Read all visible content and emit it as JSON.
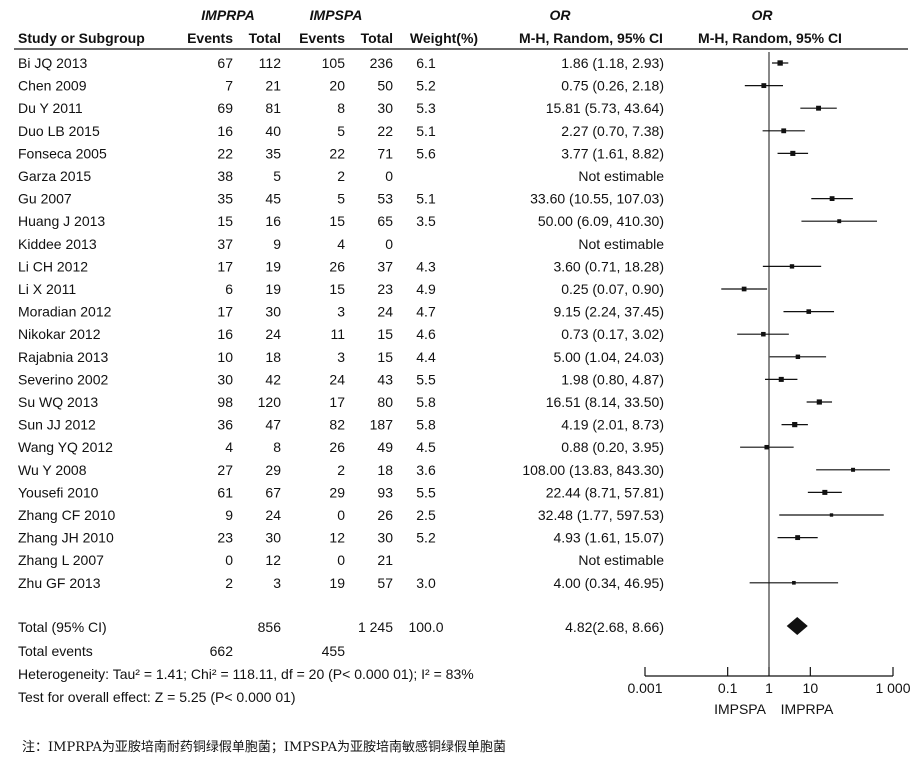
{
  "headers": {
    "group1": "IMPRPA",
    "group2": "IMPSPA",
    "or_header": "OR",
    "forest_header": "OR",
    "study": "Study or Subgroup",
    "events1": "Events",
    "total1": "Total",
    "events2": "Events",
    "total2": "Total",
    "weight": "Weight(%)",
    "method": "M-H, Random, 95% CI",
    "forest_method": "M-H, Random, 95% CI"
  },
  "studies": [
    {
      "name": "Bi JQ 2013",
      "e1": "67",
      "t1": "112",
      "e2": "105",
      "t2": "236",
      "weight": "6.1",
      "ci_text": "1.86 (1.18, 2.93)",
      "or": 1.86,
      "lo": 1.18,
      "hi": 2.93,
      "w": 6.1
    },
    {
      "name": "Chen 2009",
      "e1": "7",
      "t1": "21",
      "e2": "20",
      "t2": "50",
      "weight": "5.2",
      "ci_text": "0.75 (0.26, 2.18)",
      "or": 0.75,
      "lo": 0.26,
      "hi": 2.18,
      "w": 5.2
    },
    {
      "name": "Du Y 2011",
      "e1": "69",
      "t1": "81",
      "e2": "8",
      "t2": "30",
      "weight": "5.3",
      "ci_text": "15.81 (5.73, 43.64)",
      "or": 15.81,
      "lo": 5.73,
      "hi": 43.64,
      "w": 5.3
    },
    {
      "name": "Duo LB  2015",
      "e1": "16",
      "t1": "40",
      "e2": "5",
      "t2": "22",
      "weight": "5.1",
      "ci_text": "2.27 (0.70, 7.38)",
      "or": 2.27,
      "lo": 0.7,
      "hi": 7.38,
      "w": 5.1
    },
    {
      "name": "Fonseca 2005",
      "e1": "22",
      "t1": "35",
      "e2": "22",
      "t2": "71",
      "weight": "5.6",
      "ci_text": "3.77 (1.61, 8.82)",
      "or": 3.77,
      "lo": 1.61,
      "hi": 8.82,
      "w": 5.6
    },
    {
      "name": "Garza 2015",
      "e1": "38",
      "t1": "5",
      "e2": "2",
      "t2": "0",
      "weight": "",
      "ci_text": "Not estimable",
      "or": null,
      "lo": null,
      "hi": null,
      "w": null
    },
    {
      "name": "Gu 2007",
      "e1": "35",
      "t1": "45",
      "e2": "5",
      "t2": "53",
      "weight": "5.1",
      "ci_text": "33.60 (10.55, 107.03)",
      "or": 33.6,
      "lo": 10.55,
      "hi": 107.03,
      "w": 5.1
    },
    {
      "name": "Huang J 2013",
      "e1": "15",
      "t1": "16",
      "e2": "15",
      "t2": "65",
      "weight": "3.5",
      "ci_text": "50.00 (6.09, 410.30)",
      "or": 50.0,
      "lo": 6.09,
      "hi": 410.3,
      "w": 3.5
    },
    {
      "name": "Kiddee 2013",
      "e1": "37",
      "t1": "9",
      "e2": "4",
      "t2": "0",
      "weight": "",
      "ci_text": "Not estimable",
      "or": null,
      "lo": null,
      "hi": null,
      "w": null
    },
    {
      "name": "Li CH 2012",
      "e1": "17",
      "t1": "19",
      "e2": "26",
      "t2": "37",
      "weight": "4.3",
      "ci_text": "3.60 (0.71, 18.28)",
      "or": 3.6,
      "lo": 0.71,
      "hi": 18.28,
      "w": 4.3
    },
    {
      "name": "Li X 2011",
      "e1": "6",
      "t1": "19",
      "e2": "15",
      "t2": "23",
      "weight": "4.9",
      "ci_text": "0.25 (0.07, 0.90)",
      "or": 0.25,
      "lo": 0.07,
      "hi": 0.9,
      "w": 4.9
    },
    {
      "name": "Moradian 2012",
      "e1": "17",
      "t1": "30",
      "e2": "3",
      "t2": "24",
      "weight": "4.7",
      "ci_text": "9.15 (2.24, 37.45)",
      "or": 9.15,
      "lo": 2.24,
      "hi": 37.45,
      "w": 4.7
    },
    {
      "name": "Nikokar 2012",
      "e1": "16",
      "t1": "24",
      "e2": "11",
      "t2": "15",
      "weight": "4.6",
      "ci_text": "0.73 (0.17, 3.02)",
      "or": 0.73,
      "lo": 0.17,
      "hi": 3.02,
      "w": 4.6
    },
    {
      "name": "Rajabnia 2013",
      "e1": "10",
      "t1": "18",
      "e2": "3",
      "t2": "15",
      "weight": "4.4",
      "ci_text": "5.00 (1.04, 24.03)",
      "or": 5.0,
      "lo": 1.04,
      "hi": 24.03,
      "w": 4.4
    },
    {
      "name": "Severino 2002",
      "e1": "30",
      "t1": "42",
      "e2": "24",
      "t2": "43",
      "weight": "5.5",
      "ci_text": "1.98 (0.80, 4.87)",
      "or": 1.98,
      "lo": 0.8,
      "hi": 4.87,
      "w": 5.5
    },
    {
      "name": "Su WQ 2013",
      "e1": "98",
      "t1": "120",
      "e2": "17",
      "t2": "80",
      "weight": "5.8",
      "ci_text": "16.51 (8.14, 33.50)",
      "or": 16.51,
      "lo": 8.14,
      "hi": 33.5,
      "w": 5.8
    },
    {
      "name": "Sun JJ  2012",
      "e1": "36",
      "t1": "47",
      "e2": "82",
      "t2": "187",
      "weight": "5.8",
      "ci_text": "4.19 (2.01, 8.73)",
      "or": 4.19,
      "lo": 2.01,
      "hi": 8.73,
      "w": 5.8
    },
    {
      "name": "Wang YQ 2012",
      "e1": "4",
      "t1": "8",
      "e2": "26",
      "t2": "49",
      "weight": "4.5",
      "ci_text": "0.88 (0.20, 3.95)",
      "or": 0.88,
      "lo": 0.2,
      "hi": 3.95,
      "w": 4.5
    },
    {
      "name": "Wu Y 2008",
      "e1": "27",
      "t1": "29",
      "e2": "2",
      "t2": "18",
      "weight": "3.6",
      "ci_text": "108.00 (13.83, 843.30)",
      "or": 108.0,
      "lo": 13.83,
      "hi": 843.3,
      "w": 3.6
    },
    {
      "name": "Yousefi 2010",
      "e1": "61",
      "t1": "67",
      "e2": "29",
      "t2": "93",
      "weight": "5.5",
      "ci_text": "22.44 (8.71, 57.81)",
      "or": 22.44,
      "lo": 8.71,
      "hi": 57.81,
      "w": 5.5
    },
    {
      "name": "Zhang CF  2010",
      "e1": "9",
      "t1": "24",
      "e2": "0",
      "t2": "26",
      "weight": "2.5",
      "ci_text": "32.48 (1.77, 597.53)",
      "or": 32.48,
      "lo": 1.77,
      "hi": 597.53,
      "w": 2.5
    },
    {
      "name": "Zhang JH 2010",
      "e1": "23",
      "t1": "30",
      "e2": "12",
      "t2": "30",
      "weight": "5.2",
      "ci_text": "4.93 (1.61, 15.07)",
      "or": 4.93,
      "lo": 1.61,
      "hi": 15.07,
      "w": 5.2
    },
    {
      "name": "Zhang L 2007",
      "e1": "0",
      "t1": "12",
      "e2": "0",
      "t2": "21",
      "weight": "",
      "ci_text": "Not estimable",
      "or": null,
      "lo": null,
      "hi": null,
      "w": null
    },
    {
      "name": "Zhu GF 2013",
      "e1": "2",
      "t1": "3",
      "e2": "19",
      "t2": "57",
      "weight": "3.0",
      "ci_text": "4.00 (0.34, 46.95)",
      "or": 4.0,
      "lo": 0.34,
      "hi": 46.95,
      "w": 3.0
    }
  ],
  "total": {
    "label": "Total (95% CI)",
    "t1": "856",
    "t2": "1 245",
    "weight": "100.0",
    "ci_text": "4.82(2.68, 8.66)",
    "or": 4.82,
    "lo": 2.68,
    "hi": 8.66
  },
  "total_events": {
    "label": "Total events",
    "e1": "662",
    "e2": "455"
  },
  "heterogeneity": "Heterogeneity: Tau² = 1.41; Chi² = 118.11, df = 20 (P< 0.000 01); I² = 83%",
  "overall_test": "Test for overall effect: Z = 5.25 (P< 0.000 01)",
  "chart_data": {
    "type": "scatter",
    "xscale": "log",
    "xlim": [
      0.001,
      1000
    ],
    "xticks": [
      0.001,
      0.1,
      1,
      10,
      1000
    ],
    "xtick_labels": [
      "0.001",
      "0.1",
      "1",
      "10",
      "1 000"
    ],
    "reference_line": 1,
    "xlabel_left": "IMPSPA",
    "xlabel_right": "IMPRPA"
  },
  "note": "注：IMPRPA为亚胺培南耐药铜绿假单胞菌；IMPSPA为亚胺培南敏感铜绿假单胞菌"
}
